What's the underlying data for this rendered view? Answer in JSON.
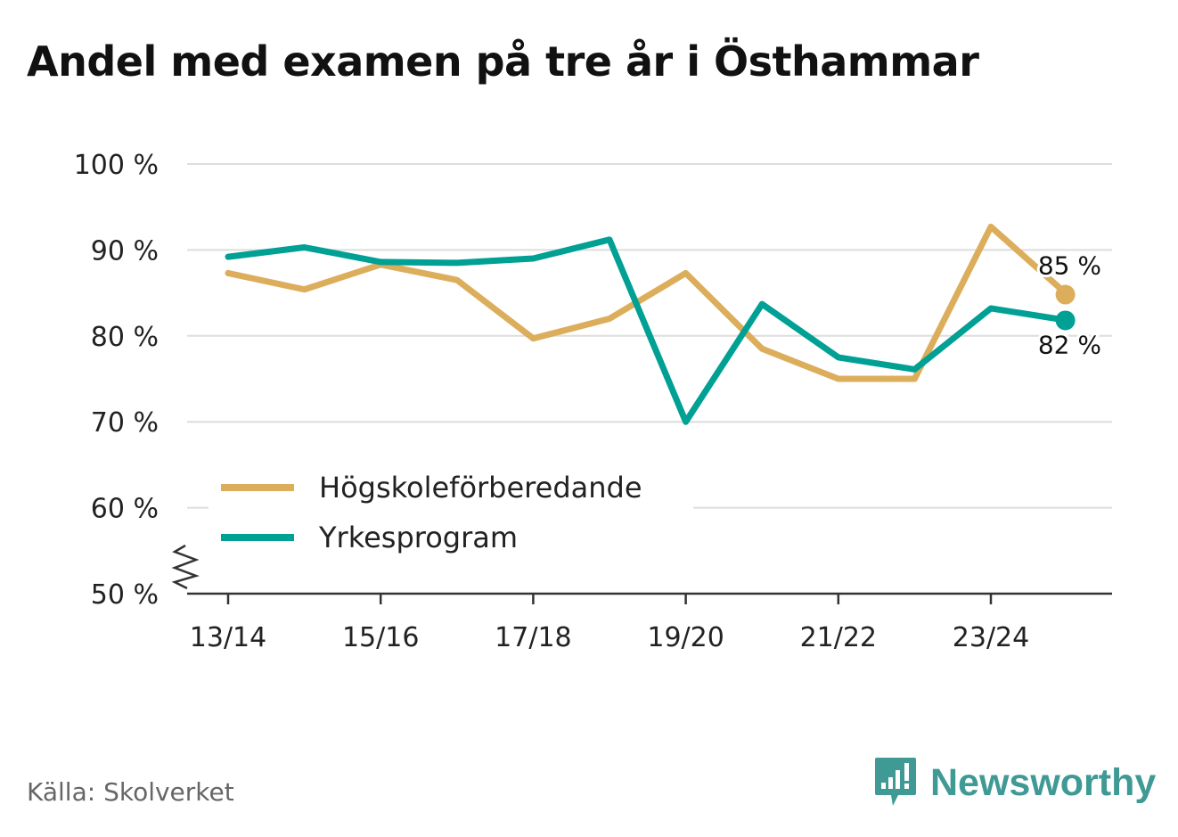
{
  "chart_data": {
    "type": "line",
    "title": "Andel med examen på tre år i Östhammar",
    "xlabel": "",
    "ylabel": "",
    "x": [
      "13/14",
      "14/15",
      "15/16",
      "16/17",
      "17/18",
      "18/19",
      "19/20",
      "20/21",
      "21/22",
      "22/23",
      "23/24",
      "24/25"
    ],
    "x_tick_labels": [
      "13/14",
      "15/16",
      "17/18",
      "19/20",
      "21/22",
      "23/24"
    ],
    "y_tick_labels": [
      "50 %",
      "60 %",
      "70 %",
      "80 %",
      "90 %",
      "100 %"
    ],
    "y_ticks": [
      50,
      60,
      70,
      80,
      90,
      100
    ],
    "ylim": [
      50,
      100
    ],
    "axis_break": true,
    "grid": true,
    "legend_position": "bottom-left",
    "series": [
      {
        "name": "Högskoleförberedande",
        "color": "#dcae5c",
        "values": [
          87.3,
          85.4,
          88.3,
          86.5,
          79.7,
          82.0,
          87.3,
          78.5,
          75.0,
          75.0,
          92.7,
          84.8
        ],
        "end_label": "85 %"
      },
      {
        "name": "Yrkesprogram",
        "color": "#00a095",
        "values": [
          89.2,
          90.3,
          88.6,
          88.5,
          89.0,
          91.2,
          70.0,
          83.7,
          77.5,
          76.1,
          83.2,
          81.8
        ],
        "end_label": "82 %"
      }
    ]
  },
  "source": "Källa: Skolverket",
  "brand": {
    "name": "Newsworthy",
    "color": "#3f9a95",
    "icon": "newsworthy-logo-icon"
  },
  "colors": {
    "grid": "#dddddd",
    "axis": "#333333",
    "text": "#222222"
  }
}
